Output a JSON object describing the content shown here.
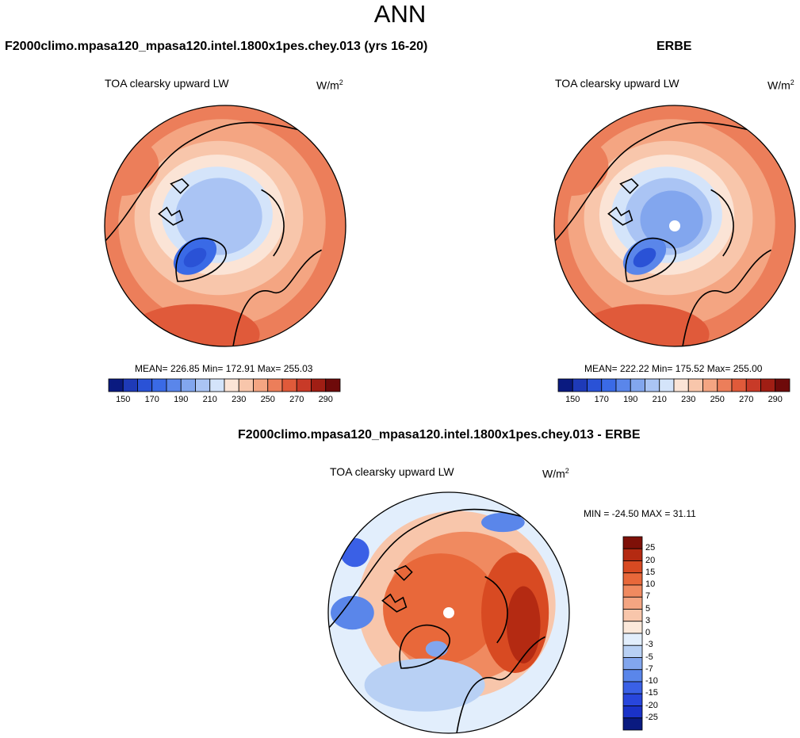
{
  "page": {
    "title": "ANN",
    "colors": {
      "coast": "#000000",
      "outline": "#000000"
    }
  },
  "panels": [
    {
      "id": "model",
      "title": "F2000climo.mpasa120_mpasa120.intel.1800x1pes.chey.013 (yrs 16-20)",
      "variable": "TOA clearsky upward LW",
      "units_base": "W/m",
      "units_exp": "2",
      "stats": "MEAN= 226.85  Min= 172.91  Max= 255.03"
    },
    {
      "id": "obs",
      "title": "ERBE",
      "variable": "TOA clearsky upward LW",
      "units_base": "W/m",
      "units_exp": "2",
      "stats": "MEAN= 222.22  Min= 175.52  Max= 255.00"
    },
    {
      "id": "diff",
      "title": "F2000climo.mpasa120_mpasa120.intel.1800x1pes.chey.013 - ERBE",
      "variable": "TOA clearsky upward LW",
      "units_base": "W/m",
      "units_exp": "2",
      "stats": "MIN = -24.50 MAX =  31.11"
    }
  ],
  "chart_data": [
    {
      "type": "heatmap",
      "projection": "north-polar-stereographic",
      "title": "F2000climo.mpasa120_mpasa120.intel.1800x1pes.chey.013 (yrs 16-20)",
      "field": "TOA clearsky upward LW",
      "units": "W/m^2",
      "mean": 226.85,
      "min": 172.91,
      "max": 255.03,
      "levels": [
        150,
        160,
        170,
        180,
        190,
        200,
        210,
        220,
        230,
        240,
        250,
        260,
        270,
        280,
        290
      ],
      "tick_labels": [
        "150",
        "170",
        "190",
        "210",
        "230",
        "250",
        "270",
        "290"
      ],
      "colors": [
        "#0a1a80",
        "#1e3ab8",
        "#2a52d6",
        "#3a6ae6",
        "#5a86ea",
        "#82a6ee",
        "#aac4f4",
        "#d4e4fa",
        "#fbe4d6",
        "#f8c6ab",
        "#f4a582",
        "#ec7e5a",
        "#e05a3a",
        "#c83a28",
        "#a01e14",
        "#6e0a0a"
      ]
    },
    {
      "type": "heatmap",
      "projection": "north-polar-stereographic",
      "title": "ERBE",
      "field": "TOA clearsky upward LW",
      "units": "W/m^2",
      "mean": 222.22,
      "min": 175.52,
      "max": 255.0,
      "levels": [
        150,
        160,
        170,
        180,
        190,
        200,
        210,
        220,
        230,
        240,
        250,
        260,
        270,
        280,
        290
      ],
      "tick_labels": [
        "150",
        "170",
        "190",
        "210",
        "230",
        "250",
        "270",
        "290"
      ],
      "colors": [
        "#0a1a80",
        "#1e3ab8",
        "#2a52d6",
        "#3a6ae6",
        "#5a86ea",
        "#82a6ee",
        "#aac4f4",
        "#d4e4fa",
        "#fbe4d6",
        "#f8c6ab",
        "#f4a582",
        "#ec7e5a",
        "#e05a3a",
        "#c83a28",
        "#a01e14",
        "#6e0a0a"
      ]
    },
    {
      "type": "heatmap",
      "projection": "north-polar-stereographic",
      "title": "F2000climo.mpasa120_mpasa120.intel.1800x1pes.chey.013 - ERBE",
      "field": "TOA clearsky upward LW",
      "units": "W/m^2",
      "min": -24.5,
      "max": 31.11,
      "levels": [
        -25,
        -20,
        -15,
        -10,
        -7,
        -5,
        -3,
        0,
        3,
        5,
        7,
        10,
        15,
        20,
        25
      ],
      "tick_labels": [
        "25",
        "20",
        "15",
        "10",
        "7",
        "5",
        "3",
        "0",
        "-3",
        "-5",
        "-7",
        "-10",
        "-15",
        "-20",
        "-25"
      ],
      "colors": [
        "#0a1a80",
        "#1a32c8",
        "#2846dc",
        "#3a60e6",
        "#5a86ea",
        "#82a6ee",
        "#b8d0f4",
        "#e2eefc",
        "#fbe8da",
        "#f8c6ab",
        "#f4a582",
        "#f08a60",
        "#e8683a",
        "#d84a22",
        "#b42a12",
        "#7e1008"
      ]
    }
  ]
}
